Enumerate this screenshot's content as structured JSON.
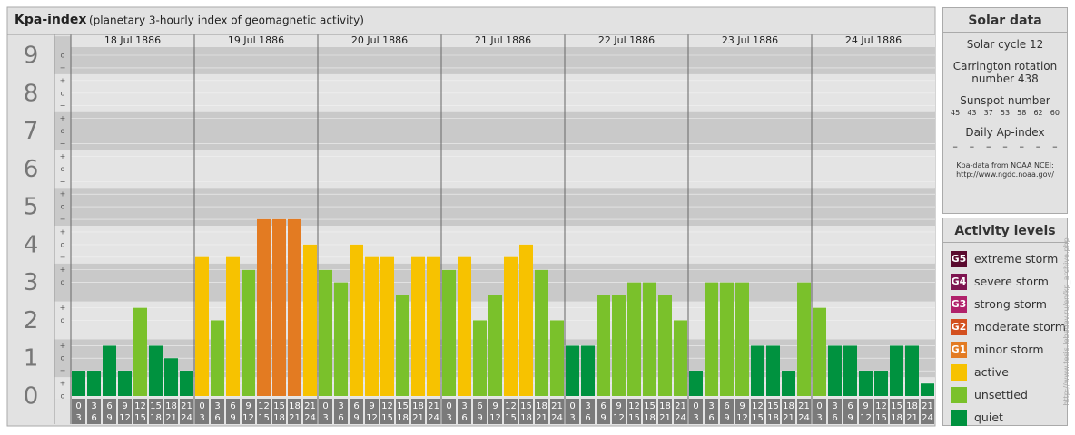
{
  "chart_data": {
    "type": "bar",
    "title": "Kpa-index",
    "subtitle": "(planetary 3-hourly index of geomagnetic activity)",
    "days": [
      "18 Jul 1886",
      "19 Jul 1886",
      "20 Jul 1886",
      "21 Jul 1886",
      "22 Jul 1886",
      "23 Jul 1886",
      "24 Jul 1886"
    ],
    "intervals": [
      [
        "0",
        "3"
      ],
      [
        "3",
        "6"
      ],
      [
        "6",
        "9"
      ],
      [
        "9",
        "12"
      ],
      [
        "12",
        "15"
      ],
      [
        "15",
        "18"
      ],
      [
        "18",
        "21"
      ],
      [
        "21",
        "24"
      ]
    ],
    "values": [
      0.67,
      0.67,
      1.33,
      0.67,
      2.33,
      1.33,
      1,
      0.67,
      3.67,
      2,
      3.67,
      3.33,
      4.67,
      4.67,
      4.67,
      4,
      3.33,
      3,
      4,
      3.67,
      3.67,
      2.67,
      3.67,
      3.67,
      3.33,
      3.67,
      2,
      2.67,
      3.67,
      4,
      3.33,
      2,
      1.33,
      1.33,
      2.67,
      2.67,
      3,
      3,
      2.67,
      2,
      0.67,
      3,
      3,
      3,
      1.33,
      1.33,
      0.67,
      3,
      2.33,
      1.33,
      1.33,
      0.67,
      0.67,
      1.33,
      1.33,
      0.33
    ],
    "colors": [
      "#00923f",
      "#00923f",
      "#00923f",
      "#00923f",
      "#7ac12b",
      "#00923f",
      "#00923f",
      "#00923f",
      "#f7c200",
      "#7ac12b",
      "#f7c200",
      "#7ac12b",
      "#e37b22",
      "#e37b22",
      "#e37b22",
      "#f7c200",
      "#7ac12b",
      "#7ac12b",
      "#f7c200",
      "#f7c200",
      "#f7c200",
      "#7ac12b",
      "#f7c200",
      "#f7c200",
      "#7ac12b",
      "#f7c200",
      "#7ac12b",
      "#7ac12b",
      "#f7c200",
      "#f7c200",
      "#7ac12b",
      "#7ac12b",
      "#00923f",
      "#00923f",
      "#7ac12b",
      "#7ac12b",
      "#7ac12b",
      "#7ac12b",
      "#7ac12b",
      "#7ac12b",
      "#00923f",
      "#7ac12b",
      "#7ac12b",
      "#7ac12b",
      "#00923f",
      "#00923f",
      "#00923f",
      "#7ac12b",
      "#7ac12b",
      "#00923f",
      "#00923f",
      "#00923f",
      "#00923f",
      "#00923f",
      "#00923f",
      "#00923f"
    ],
    "ylim": [
      0,
      9
    ],
    "yticks": [
      0,
      1,
      2,
      3,
      4,
      5,
      6,
      7,
      8,
      9
    ],
    "minor_symbols": [
      "−",
      "o",
      "+"
    ]
  },
  "solar_data": {
    "title": "Solar data",
    "cycle": "Solar cycle 12",
    "carrington": "Carrington rotation number 438",
    "sunspot_title": "Sunspot number",
    "sunspots": [
      45,
      43,
      37,
      53,
      58,
      62,
      60
    ],
    "ap_title": "Daily Ap-index",
    "ap": [
      "–",
      "–",
      "–",
      "–",
      "–",
      "–",
      "–"
    ],
    "source": "Kpa-data from NOAA NCEI:",
    "source_url": "http://www.ngdc.noaa.gov/"
  },
  "legend": {
    "title": "Activity levels",
    "items": [
      {
        "badge": "G5",
        "name": "extreme storm",
        "color": "#5a0a2e"
      },
      {
        "badge": "G4",
        "name": "severe storm",
        "color": "#7e1450"
      },
      {
        "badge": "G3",
        "name": "strong storm",
        "color": "#b0216a"
      },
      {
        "badge": "G2",
        "name": "moderate storm",
        "color": "#d3501f"
      },
      {
        "badge": "G1",
        "name": "minor storm",
        "color": "#e37b22"
      },
      {
        "name": "active",
        "color": "#f7c200"
      },
      {
        "name": "unsettled",
        "color": "#7ac12b"
      },
      {
        "name": "quiet",
        "color": "#00923f"
      }
    ]
  },
  "credit": "http://www.tesis.lebedev.ru/en/kp_archive.php"
}
